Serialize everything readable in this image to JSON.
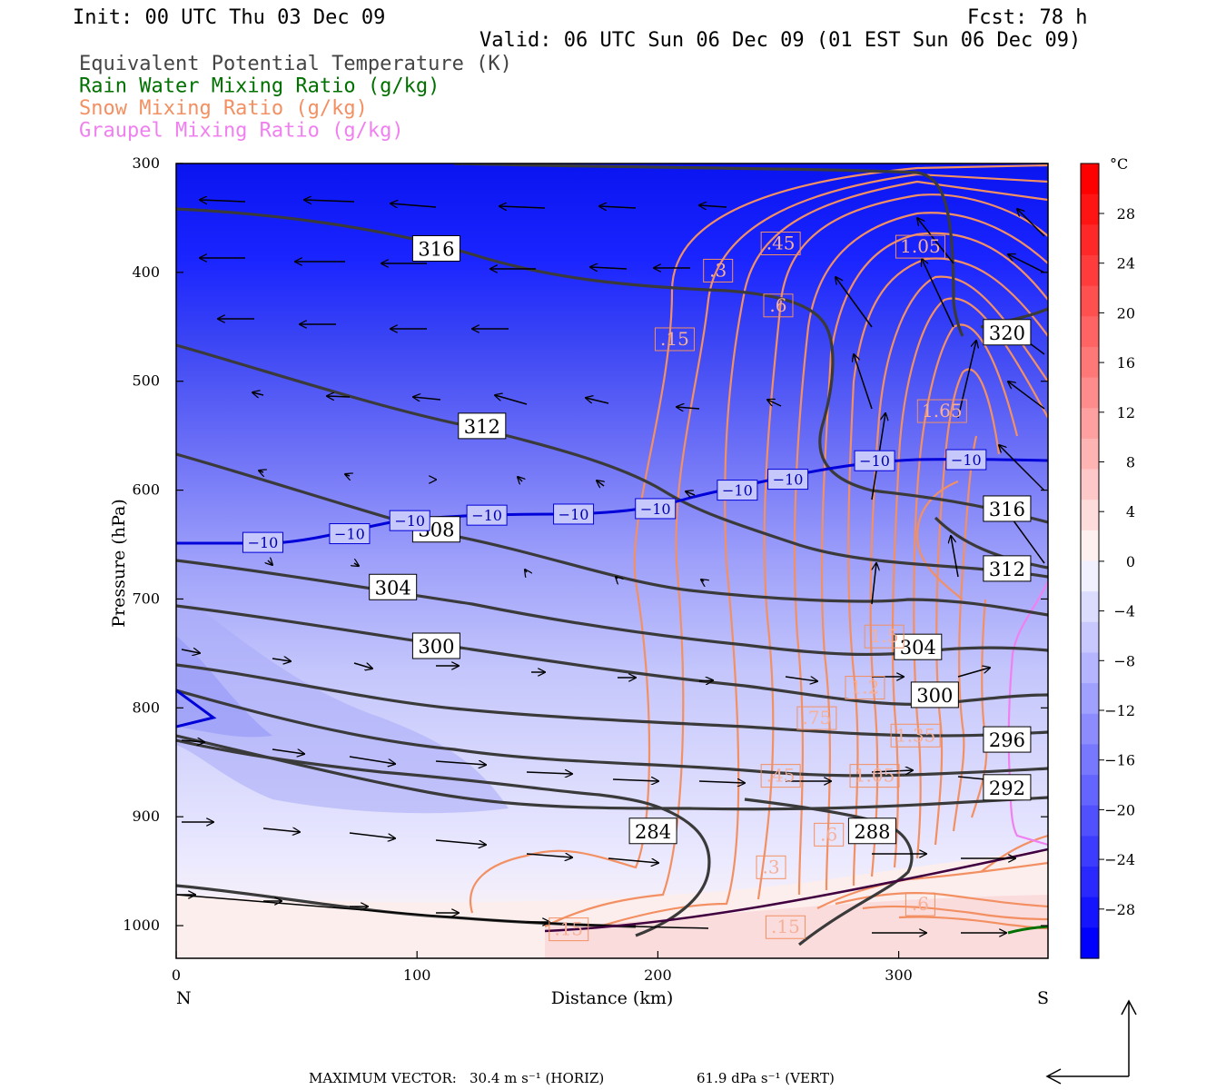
{
  "header": {
    "init": "Init: 00 UTC Thu 03 Dec 09",
    "fcst": "Fcst:   78 h",
    "valid": "Valid: 06 UTC Sun 06 Dec 09 (01 EST Sun 06 Dec 09)"
  },
  "legend": [
    {
      "text": "Equivalent Potential Temperature (K)",
      "color": "#444444"
    },
    {
      "text": "Rain Water Mixing Ratio (g/kg)",
      "color": "#007000"
    },
    {
      "text": "Snow Mixing Ratio (g/kg)",
      "color": "#f29063"
    },
    {
      "text": "Graupel Mixing Ratio (g/kg)",
      "color": "#f080f0"
    }
  ],
  "chart_data": {
    "type": "cross-section",
    "xlabel": "Distance (km)",
    "ylabel": "Pressure (hPa)",
    "xlim": [
      0,
      362
    ],
    "ylim": [
      1030,
      300
    ],
    "x_ticks": [
      "0",
      "100",
      "200",
      "300"
    ],
    "y_ticks": [
      "300",
      "400",
      "500",
      "600",
      "700",
      "800",
      "900",
      "1000"
    ],
    "left_end": "N",
    "right_end": "S",
    "colorbar": {
      "unit": "°C",
      "labels": [
        "28",
        "24",
        "20",
        "16",
        "12",
        "8",
        "4",
        "0",
        "−4",
        "−8",
        "−12",
        "−16",
        "−20",
        "−24",
        "−28"
      ],
      "colors": [
        "#0000ff",
        "#1414ff",
        "#2828ff",
        "#3c3cff",
        "#5050ff",
        "#6464ff",
        "#7878ff",
        "#8c8cff",
        "#a0a0ff",
        "#b4b4ff",
        "#c8c8ff",
        "#dcdcff",
        "#f0f0ff",
        "#fff0f0",
        "#ffdcdc",
        "#ffc8c8",
        "#ffb4b4",
        "#ffa0a0",
        "#ff8c8c",
        "#ff7878",
        "#ff6464",
        "#ff5050",
        "#ff3c3c",
        "#ff2828",
        "#ff1414",
        "#ff0000"
      ]
    },
    "theta_e_labels": [
      {
        "text": "316",
        "x": 108,
        "p": 378
      },
      {
        "text": "312",
        "x": 127,
        "p": 541
      },
      {
        "text": "308",
        "x": 108,
        "p": 636
      },
      {
        "text": "304",
        "x": 90,
        "p": 689
      },
      {
        "text": "300",
        "x": 108,
        "p": 743
      },
      {
        "text": "284",
        "x": 198,
        "p": 913
      },
      {
        "text": "288",
        "x": 289,
        "p": 913
      },
      {
        "text": "292",
        "x": 345,
        "p": 873
      },
      {
        "text": "296",
        "x": 345,
        "p": 829
      },
      {
        "text": "300",
        "x": 315,
        "p": 788
      },
      {
        "text": "304",
        "x": 308,
        "p": 744
      },
      {
        "text": "312",
        "x": 345,
        "p": 672
      },
      {
        "text": "316",
        "x": 345,
        "p": 617
      },
      {
        "text": "320",
        "x": 345,
        "p": 455
      }
    ],
    "temp_labels": [
      {
        "text": "−10",
        "x": 36,
        "p": 648
      },
      {
        "text": "−10",
        "x": 72,
        "p": 640
      },
      {
        "text": "−10",
        "x": 97,
        "p": 628
      },
      {
        "text": "−10",
        "x": 129,
        "p": 623
      },
      {
        "text": "−10",
        "x": 165,
        "p": 622
      },
      {
        "text": "−10",
        "x": 199,
        "p": 617
      },
      {
        "text": "−10",
        "x": 233,
        "p": 600
      },
      {
        "text": "−10",
        "x": 254,
        "p": 590
      },
      {
        "text": "−10",
        "x": 290,
        "p": 573
      },
      {
        "text": "−10",
        "x": 328,
        "p": 572
      }
    ],
    "snow_labels": [
      {
        "text": ".15",
        "x": 207,
        "p": 461
      },
      {
        "text": ".3",
        "x": 225,
        "p": 398
      },
      {
        "text": ".45",
        "x": 251,
        "p": 373
      },
      {
        "text": ".6",
        "x": 250,
        "p": 430
      },
      {
        "text": "1.05",
        "x": 309,
        "p": 376
      },
      {
        "text": "1.65",
        "x": 318,
        "p": 527
      },
      {
        "text": "1.5",
        "x": 294,
        "p": 734
      },
      {
        "text": "1.2",
        "x": 286,
        "p": 781
      },
      {
        "text": ".75",
        "x": 266,
        "p": 809
      },
      {
        "text": "1.35",
        "x": 307,
        "p": 825
      },
      {
        "text": ".45",
        "x": 251,
        "p": 862
      },
      {
        "text": "1.05",
        "x": 290,
        "p": 862
      },
      {
        "text": ".6",
        "x": 271,
        "p": 916
      },
      {
        "text": ".3",
        "x": 247,
        "p": 946
      },
      {
        "text": ".6",
        "x": 309,
        "p": 980
      },
      {
        "text": ".15",
        "x": 163,
        "p": 1003
      },
      {
        "text": ".15",
        "x": 253,
        "p": 1001
      }
    ],
    "theta_e_values": [
      "284",
      "288",
      "292",
      "296",
      "300",
      "304",
      "308",
      "312",
      "316",
      "320"
    ],
    "temp_contour_value": "−10",
    "snow_values": [
      ".15",
      ".3",
      ".45",
      ".6",
      ".75",
      "1.05",
      "1.2",
      "1.35",
      "1.5",
      "1.65"
    ]
  },
  "footer": {
    "maxvec_label": "MAXIMUM VECTOR:",
    "horiz": "30.4 m s⁻¹ (HORIZ)",
    "vert": "61.9 dPa s⁻¹ (VERT)"
  }
}
